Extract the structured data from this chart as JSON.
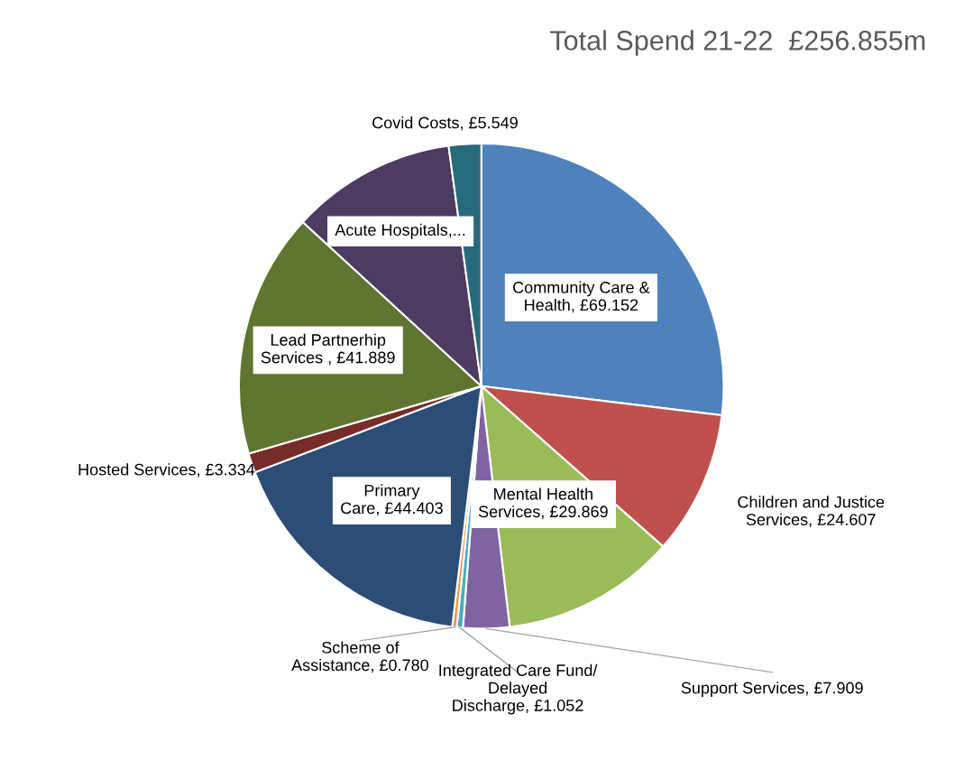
{
  "chart_data": {
    "type": "pie",
    "title": "Total Spend 21-22  £256.855m",
    "categories": [
      "Community Care & Health",
      "Children and Justice Services",
      "Mental Health Services",
      "Support Services",
      "Integrated Care Fund/ Delayed Discharge",
      "Scheme of Assistance",
      "Primary Care",
      "Hosted Services",
      "Lead Partnerhip Services ",
      "Acute Hospitals,...",
      "Covid Costs"
    ],
    "values": [
      69.152,
      24.607,
      29.869,
      7.909,
      1.052,
      0.78,
      44.403,
      3.334,
      41.889,
      28.311,
      5.549
    ],
    "value_labels": [
      "£69.152",
      "£24.607",
      "£29.869",
      "£7.909",
      "£1.052",
      "£0.780",
      "£44.403",
      "£3.334",
      "£41.889",
      null,
      "£5.549"
    ],
    "colors": [
      "#4f81bd",
      "#c0504d",
      "#9bbb59",
      "#8064a2",
      "#4bacc6",
      "#f79646",
      "#2c4d75",
      "#772c2a",
      "#5f7530",
      "#4d3b62",
      "#276a7c"
    ],
    "legend": false
  }
}
